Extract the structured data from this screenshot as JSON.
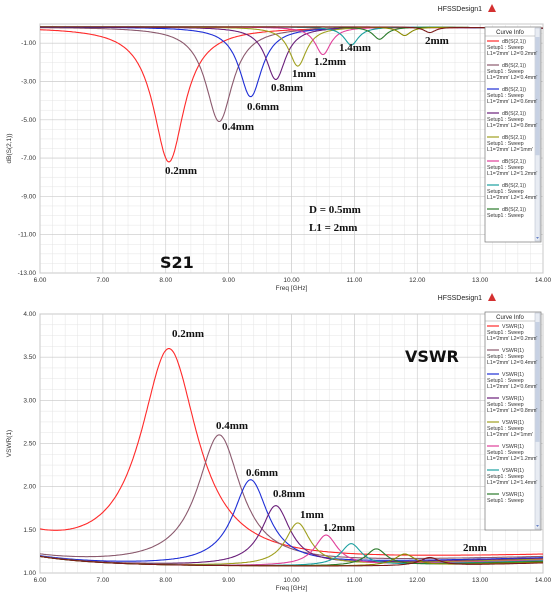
{
  "chart_data": [
    {
      "type": "line",
      "title": "S21",
      "design_label": "HFSSDesign1",
      "xlabel": "Freq [GHz]",
      "ylabel": "dB(S(2,1))",
      "xlim": [
        6.0,
        14.0
      ],
      "ylim": [
        -13.0,
        0.0
      ],
      "x_ticks": [
        "6.00",
        "7.00",
        "8.00",
        "9.00",
        "10.00",
        "11.00",
        "12.00",
        "13.00",
        "14.00"
      ],
      "y_ticks": [
        "-1.00",
        "-3.00",
        "-5.00",
        "-7.00",
        "-9.00",
        "-11.00",
        "-13.00"
      ],
      "grid": true,
      "legend_title": "Curve Info",
      "legend_position": "top-right",
      "params_text": [
        "D   = 0.5mm",
        "L1 = 2mm"
      ],
      "series": [
        {
          "name": "dB(S(2,1)) Setup1 : Sweep L1='2mm' L2='0.2mm'",
          "label": "0.2mm",
          "color": "#ff2a2a",
          "f0": 8.05,
          "value": -7.2,
          "w": 0.3
        },
        {
          "name": "dB(S(2,1)) Setup1 : Sweep L1='2mm' L2='0.4mm'",
          "label": "0.4mm",
          "color": "#8b5a6e",
          "f0": 8.85,
          "value": -5.1,
          "w": 0.26
        },
        {
          "name": "dB(S(2,1)) Setup1 : Sweep L1='2mm' L2='0.6mm'",
          "label": "0.6mm",
          "color": "#1f2fd6",
          "f0": 9.35,
          "value": -3.8,
          "w": 0.22
        },
        {
          "name": "dB(S(2,1)) Setup1 : Sweep L1='2mm' L2='0.8mm'",
          "label": "0.8mm",
          "color": "#6a1f7a",
          "f0": 9.75,
          "value": -2.9,
          "w": 0.19
        },
        {
          "name": "dB(S(2,1)) Setup1 : Sweep L1='2mm' L2='1mm'",
          "label": "1mm",
          "color": "#a0a020",
          "f0": 10.1,
          "value": -2.2,
          "w": 0.17
        },
        {
          "name": "dB(S(2,1)) Setup1 : Sweep L1='2mm' L2='1.2mm'",
          "label": "1.2mm",
          "color": "#e0409a",
          "f0": 10.5,
          "value": -1.6,
          "w": 0.15
        },
        {
          "name": "dB(S(2,1)) Setup1 : Sweep L1='2mm' L2='1.4mm'",
          "label": "1.4mm",
          "color": "#1aa0a0",
          "f0": 10.95,
          "value": -1.1,
          "w": 0.14
        },
        {
          "name": "dB(S(2,1)) Setup1 : Sweep",
          "label": "",
          "color": "#2a7a2a",
          "f0": 11.4,
          "value": -0.8,
          "w": 0.13
        },
        {
          "name": "",
          "label": "",
          "color": "#8a8a00",
          "f0": 11.8,
          "value": -0.6,
          "w": 0.12
        },
        {
          "name": "",
          "label": "2mm",
          "color": "#7a1a1a",
          "f0": 12.2,
          "value": -0.45,
          "w": 0.11
        }
      ]
    },
    {
      "type": "line",
      "title": "VSWR",
      "design_label": "HFSSDesign1",
      "xlabel": "Freq [GHz]",
      "ylabel": "VSWR(1)",
      "xlim": [
        6.0,
        14.0
      ],
      "ylim": [
        1.0,
        4.0
      ],
      "x_ticks": [
        "6.00",
        "7.00",
        "8.00",
        "9.00",
        "10.00",
        "11.00",
        "12.00",
        "13.00",
        "14.00"
      ],
      "y_ticks": [
        "4.00",
        "3.50",
        "3.00",
        "2.50",
        "2.00",
        "1.50",
        "1.00"
      ],
      "grid": true,
      "legend_title": "Curve Info",
      "legend_position": "top-right",
      "series": [
        {
          "name": "VSWR(1) Setup1 : Sweep L1='2mm' L2='0.2mm'",
          "label": "0.2mm",
          "color": "#ff2a2a",
          "f0": 8.05,
          "value": 3.6,
          "w": 0.55
        },
        {
          "name": "VSWR(1) Setup1 : Sweep L1='2mm' L2='0.4mm'",
          "label": "0.4mm",
          "color": "#8b5a6e",
          "f0": 8.85,
          "value": 2.6,
          "w": 0.42
        },
        {
          "name": "VSWR(1) Setup1 : Sweep L1='2mm' L2='0.6mm'",
          "label": "0.6mm",
          "color": "#1f2fd6",
          "f0": 9.35,
          "value": 2.08,
          "w": 0.34
        },
        {
          "name": "VSWR(1) Setup1 : Sweep L1='2mm' L2='0.8mm'",
          "label": "0.8mm",
          "color": "#6a1f7a",
          "f0": 9.75,
          "value": 1.78,
          "w": 0.28
        },
        {
          "name": "VSWR(1) Setup1 : Sweep L1='2mm' L2='1mm'",
          "label": "1mm",
          "color": "#a0a020",
          "f0": 10.1,
          "value": 1.58,
          "w": 0.24
        },
        {
          "name": "VSWR(1) Setup1 : Sweep L1='2mm' L2='1.2mm'",
          "label": "1.2mm",
          "color": "#e0409a",
          "f0": 10.55,
          "value": 1.44,
          "w": 0.22
        },
        {
          "name": "VSWR(1) Setup1 : Sweep L1='2mm' L2='1.4mm'",
          "label": "",
          "color": "#1aa0a0",
          "f0": 10.95,
          "value": 1.34,
          "w": 0.2
        },
        {
          "name": "VSWR(1) Setup1 : Sweep",
          "label": "",
          "color": "#2a7a2a",
          "f0": 11.35,
          "value": 1.28,
          "w": 0.2
        },
        {
          "name": "",
          "label": "",
          "color": "#8a8a00",
          "f0": 11.8,
          "value": 1.22,
          "w": 0.2
        },
        {
          "name": "",
          "label": "2mm",
          "color": "#7a1a1a",
          "f0": 12.2,
          "value": 1.18,
          "w": 0.2
        }
      ]
    }
  ]
}
